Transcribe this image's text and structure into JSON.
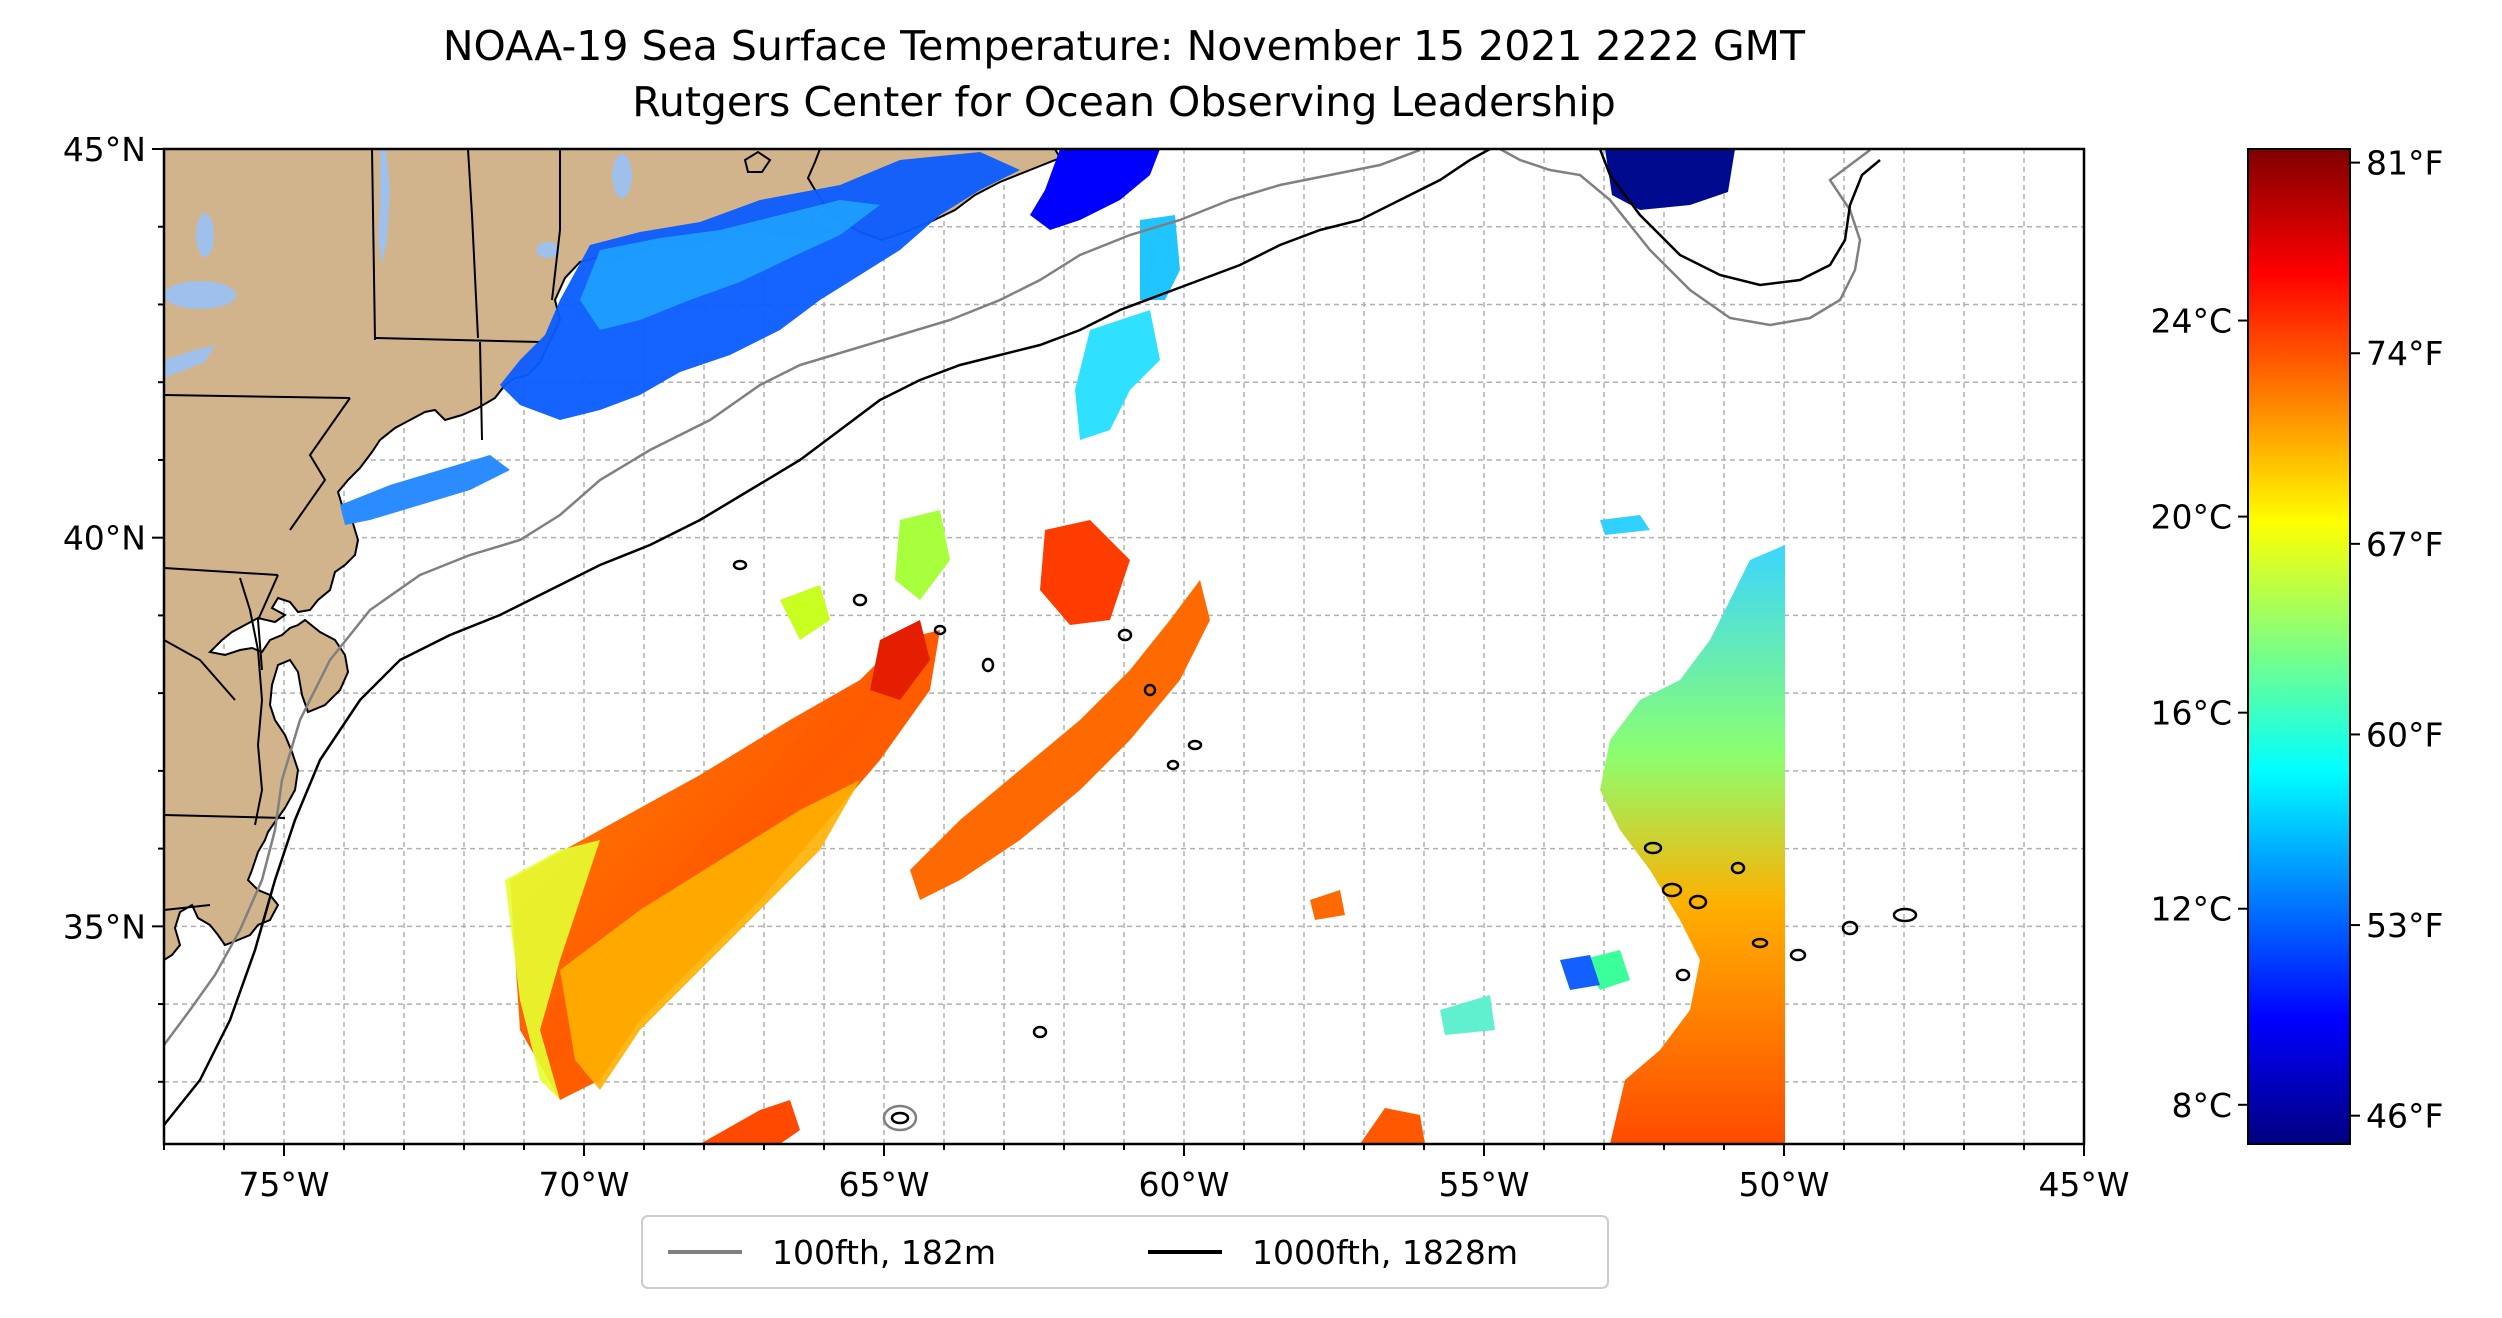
{
  "title": "NOAA-19 Sea Surface Temperature: November 15 2021 2222 GMT",
  "subtitle": "Rutgers Center for Ocean Observing Leadership",
  "map": {
    "extent": {
      "lon": [
        -77,
        -45
      ],
      "lat": [
        32.2,
        45
      ]
    },
    "lat_ticks": [
      {
        "value": 45,
        "label": "45°N"
      },
      {
        "value": 40,
        "label": "40°N"
      },
      {
        "value": 35,
        "label": "35°N"
      }
    ],
    "lon_ticks": [
      {
        "value": -75,
        "label": "75°W"
      },
      {
        "value": -70,
        "label": "70°W"
      },
      {
        "value": -65,
        "label": "65°W"
      },
      {
        "value": -60,
        "label": "60°W"
      },
      {
        "value": -55,
        "label": "55°W"
      },
      {
        "value": -50,
        "label": "50°W"
      },
      {
        "value": -45,
        "label": "45°W"
      }
    ],
    "gridlines": "dashed, 1° spacing",
    "colors": {
      "land": "#d2b48c",
      "lakes": "#9fc0ea",
      "ocean": "#ffffff",
      "contour_100fth": "#808080",
      "contour_1000fth": "#000000"
    }
  },
  "legend": {
    "placement": "bottom-center",
    "entries": [
      {
        "label": "100fth, 182m",
        "color": "#808080"
      },
      {
        "label": "1000fth, 1828m",
        "color": "#000000"
      }
    ]
  },
  "colorbar": {
    "colormap": "jet",
    "range_c": [
      7.2,
      27.5
    ],
    "celsius_ticks": [
      {
        "value": 8,
        "label": "8°C"
      },
      {
        "value": 12,
        "label": "12°C"
      },
      {
        "value": 16,
        "label": "16°C"
      },
      {
        "value": 20,
        "label": "20°C"
      },
      {
        "value": 24,
        "label": "24°C"
      }
    ],
    "fahrenheit_ticks": [
      {
        "value": 46,
        "label": "46°F"
      },
      {
        "value": 53,
        "label": "53°F"
      },
      {
        "value": 60,
        "label": "60°F"
      },
      {
        "value": 67,
        "label": "67°F"
      },
      {
        "value": 74,
        "label": "74°F"
      },
      {
        "value": 81,
        "label": "81°F"
      }
    ]
  }
}
